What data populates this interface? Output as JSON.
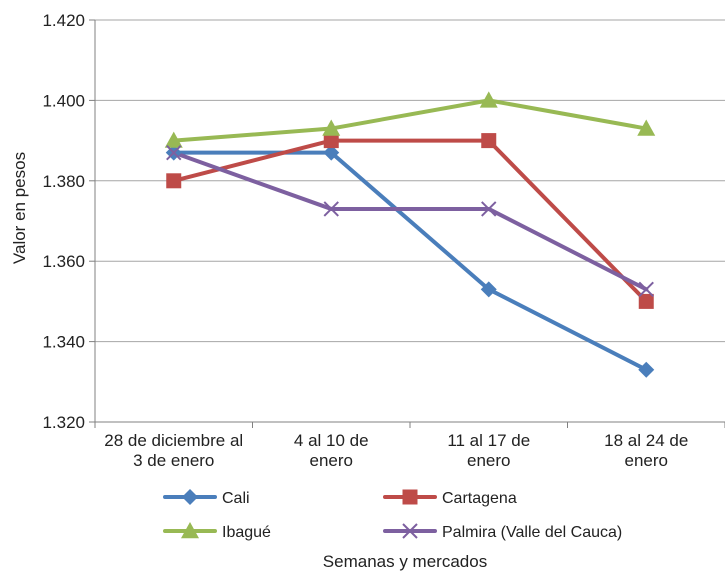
{
  "chart_data": {
    "type": "line",
    "title": "",
    "ylabel": "Valor en pesos",
    "xlabel": "Semanas y mercados",
    "ylim": [
      1320,
      1420
    ],
    "y_ticks": [
      1320,
      1340,
      1360,
      1380,
      1400,
      1420
    ],
    "y_tick_labels": [
      "1.320",
      "1.340",
      "1.360",
      "1.380",
      "1.400",
      "1.420"
    ],
    "categories": [
      [
        "28 de diciembre al",
        "3 de enero"
      ],
      [
        "4 al 10 de",
        "enero"
      ],
      [
        "11 al 17 de",
        "enero"
      ],
      [
        "18 al 24 de",
        "enero"
      ]
    ],
    "grid": "horizontal",
    "legend_position": "bottom",
    "series": [
      {
        "name": "Cali",
        "values": [
          1387,
          1387,
          1353,
          1333
        ],
        "color": "#4a7ebb",
        "marker": "diamond"
      },
      {
        "name": "Cartagena",
        "values": [
          1380,
          1390,
          1390,
          1350
        ],
        "color": "#be4b48",
        "marker": "square"
      },
      {
        "name": "Ibagué",
        "values": [
          1390,
          1393,
          1400,
          1393
        ],
        "color": "#98b954",
        "marker": "triangle"
      },
      {
        "name": "Palmira (Valle del Cauca)",
        "values": [
          1387,
          1373,
          1373,
          1353
        ],
        "color": "#7d60a0",
        "marker": "x"
      }
    ]
  }
}
